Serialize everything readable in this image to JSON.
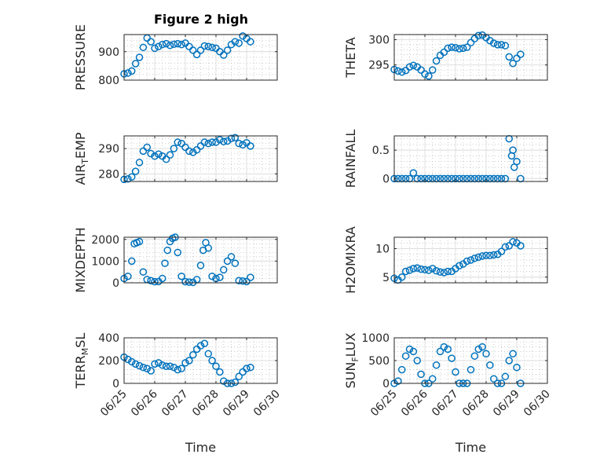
{
  "figure_title": "Figure 2 high",
  "colors": {
    "marker": "#0072BD",
    "axis": "#262626",
    "grid": "#b8b8b8",
    "background": "#ffffff"
  },
  "x_tick_labels": [
    "06/25",
    "06/26",
    "06/27",
    "06/28",
    "06/29",
    "06/30"
  ],
  "x_label": "Time",
  "chart_data": [
    {
      "type": "scatter",
      "title": "Figure 2 high",
      "ylabel": "PRESSURE",
      "xlabel": "",
      "ylim": [
        800,
        960
      ],
      "yticks": [
        800,
        900
      ],
      "grid": true,
      "legend": "none",
      "x": [
        "06/25 00:00",
        "06/25 03:00",
        "06/25 06:00",
        "06/25 09:00",
        "06/25 12:00",
        "06/25 15:00",
        "06/25 18:00",
        "06/25 21:00",
        "06/26 00:00",
        "06/26 03:00",
        "06/26 06:00",
        "06/26 09:00",
        "06/26 12:00",
        "06/26 15:00",
        "06/26 18:00",
        "06/26 21:00",
        "06/27 00:00",
        "06/27 03:00",
        "06/27 06:00",
        "06/27 09:00",
        "06/27 12:00",
        "06/27 15:00",
        "06/27 18:00",
        "06/27 21:00",
        "06/28 00:00",
        "06/28 03:00",
        "06/28 06:00",
        "06/28 09:00",
        "06/28 12:00",
        "06/28 15:00",
        "06/28 18:00",
        "06/28 21:00",
        "06/29 00:00",
        "06/29 03:00"
      ],
      "values": [
        822,
        825,
        832,
        858,
        880,
        915,
        948,
        935,
        912,
        918,
        925,
        928,
        922,
        926,
        928,
        925,
        930,
        918,
        905,
        890,
        905,
        920,
        918,
        915,
        912,
        900,
        888,
        905,
        925,
        935,
        930,
        955,
        946,
        935
      ]
    },
    {
      "type": "scatter",
      "ylabel": "THETA",
      "xlabel": "",
      "ylim": [
        292,
        301
      ],
      "yticks": [
        295,
        300
      ],
      "grid": true,
      "legend": "none",
      "x": [
        "06/25 00:00",
        "06/25 03:00",
        "06/25 06:00",
        "06/25 09:00",
        "06/25 12:00",
        "06/25 15:00",
        "06/25 18:00",
        "06/25 21:00",
        "06/26 00:00",
        "06/26 03:00",
        "06/26 06:00",
        "06/26 09:00",
        "06/26 12:00",
        "06/26 15:00",
        "06/26 18:00",
        "06/26 21:00",
        "06/27 00:00",
        "06/27 03:00",
        "06/27 06:00",
        "06/27 09:00",
        "06/27 12:00",
        "06/27 15:00",
        "06/27 18:00",
        "06/27 21:00",
        "06/28 00:00",
        "06/28 03:00",
        "06/28 06:00",
        "06/28 09:00",
        "06/28 12:00",
        "06/28 15:00",
        "06/28 18:00",
        "06/28 21:00",
        "06/29 00:00",
        "06/29 03:00"
      ],
      "values": [
        294.1,
        293.8,
        293.6,
        293.9,
        294.6,
        294.9,
        294.6,
        294.0,
        293.2,
        292.8,
        294.0,
        295.8,
        296.9,
        297.5,
        298.3,
        298.5,
        298.4,
        298.2,
        298.3,
        298.5,
        299.4,
        300.2,
        300.8,
        300.9,
        300.4,
        299.8,
        299.3,
        299.0,
        299.0,
        298.8,
        296.6,
        295.3,
        296.3,
        297.1
      ]
    },
    {
      "type": "scatter",
      "ylabel": "AIR_TEMP",
      "xlabel": "",
      "ylim": [
        277,
        295
      ],
      "yticks": [
        280,
        290
      ],
      "grid": true,
      "legend": "none",
      "x": [
        "06/25 00:00",
        "06/25 03:00",
        "06/25 06:00",
        "06/25 09:00",
        "06/25 12:00",
        "06/25 15:00",
        "06/25 18:00",
        "06/25 21:00",
        "06/26 00:00",
        "06/26 03:00",
        "06/26 06:00",
        "06/26 09:00",
        "06/26 12:00",
        "06/26 15:00",
        "06/26 18:00",
        "06/26 21:00",
        "06/27 00:00",
        "06/27 03:00",
        "06/27 06:00",
        "06/27 09:00",
        "06/27 12:00",
        "06/27 15:00",
        "06/27 18:00",
        "06/27 21:00",
        "06/28 00:00",
        "06/28 03:00",
        "06/28 06:00",
        "06/28 09:00",
        "06/28 12:00",
        "06/28 15:00",
        "06/28 18:00",
        "06/28 21:00",
        "06/29 00:00",
        "06/29 03:00"
      ],
      "values": [
        277.8,
        278.0,
        278.8,
        281.0,
        284.5,
        289.0,
        290.5,
        288.0,
        287.0,
        287.8,
        287.0,
        285.8,
        287.5,
        290.0,
        292.5,
        292.0,
        290.5,
        289.0,
        288.5,
        289.5,
        291.0,
        292.5,
        292.0,
        292.5,
        292.5,
        293.5,
        292.8,
        293.0,
        294.0,
        294.3,
        292.0,
        291.5,
        292.3,
        291.0
      ]
    },
    {
      "type": "scatter",
      "ylabel": "RAINFALL",
      "xlabel": "",
      "ylim": [
        -0.05,
        0.75
      ],
      "yticks": [
        0,
        0.5
      ],
      "grid": true,
      "legend": "none",
      "x": [
        "06/25 00:00",
        "06/25 03:00",
        "06/25 06:00",
        "06/25 09:00",
        "06/25 12:00",
        "06/25 15:00",
        "06/25 18:00",
        "06/25 21:00",
        "06/26 00:00",
        "06/26 03:00",
        "06/26 06:00",
        "06/26 09:00",
        "06/26 12:00",
        "06/26 15:00",
        "06/26 18:00",
        "06/26 21:00",
        "06/27 00:00",
        "06/27 03:00",
        "06/27 06:00",
        "06/27 09:00",
        "06/27 12:00",
        "06/27 15:00",
        "06/27 18:00",
        "06/27 21:00",
        "06/28 00:00",
        "06/28 03:00",
        "06/28 06:00",
        "06/28 09:00",
        "06/28 12:00",
        "06/28 15:00",
        "06/28 18:00",
        "06/28 20:00",
        "06/28 21:00",
        "06/28 22:00",
        "06/29 00:00",
        "06/29 03:00"
      ],
      "values": [
        0,
        0,
        0,
        0,
        0,
        0.1,
        0,
        0,
        0,
        0,
        0,
        0,
        0,
        0,
        0,
        0,
        0,
        0,
        0,
        0,
        0,
        0,
        0,
        0,
        0,
        0,
        0,
        0,
        0,
        0,
        0.7,
        0.4,
        0.5,
        0.2,
        0.3,
        0
      ]
    },
    {
      "type": "scatter",
      "ylabel": "MIXDEPTH",
      "xlabel": "",
      "ylim": [
        0,
        2100
      ],
      "yticks": [
        0,
        1000,
        2000
      ],
      "grid": true,
      "legend": "none",
      "x": [
        "06/25 00:00",
        "06/25 03:00",
        "06/25 06:00",
        "06/25 08:00",
        "06/25 10:00",
        "06/25 12:00",
        "06/25 15:00",
        "06/25 18:00",
        "06/25 21:00",
        "06/26 00:00",
        "06/26 03:00",
        "06/26 06:00",
        "06/26 08:00",
        "06/26 10:00",
        "06/26 12:00",
        "06/26 14:00",
        "06/26 16:00",
        "06/26 18:00",
        "06/26 21:00",
        "06/27 00:00",
        "06/27 03:00",
        "06/27 06:00",
        "06/27 09:00",
        "06/27 12:00",
        "06/27 14:00",
        "06/27 16:00",
        "06/27 18:00",
        "06/27 21:00",
        "06/28 00:00",
        "06/28 03:00",
        "06/28 06:00",
        "06/28 09:00",
        "06/28 12:00",
        "06/28 15:00",
        "06/28 18:00",
        "06/28 21:00",
        "06/29 00:00",
        "06/29 03:00"
      ],
      "values": [
        200,
        300,
        1000,
        1800,
        1850,
        1900,
        500,
        150,
        100,
        50,
        60,
        200,
        900,
        1500,
        1900,
        2050,
        2100,
        1400,
        300,
        50,
        30,
        20,
        150,
        800,
        1500,
        1850,
        1600,
        300,
        200,
        250,
        600,
        1000,
        1200,
        900,
        100,
        80,
        60,
        250
      ]
    },
    {
      "type": "scatter",
      "ylabel": "H2OMIXRA",
      "xlabel": "",
      "ylim": [
        4,
        12
      ],
      "yticks": [
        5,
        10
      ],
      "grid": true,
      "legend": "none",
      "x": [
        "06/25 00:00",
        "06/25 03:00",
        "06/25 06:00",
        "06/25 09:00",
        "06/25 12:00",
        "06/25 15:00",
        "06/25 18:00",
        "06/25 21:00",
        "06/26 00:00",
        "06/26 03:00",
        "06/26 06:00",
        "06/26 09:00",
        "06/26 12:00",
        "06/26 15:00",
        "06/26 18:00",
        "06/26 21:00",
        "06/27 00:00",
        "06/27 03:00",
        "06/27 06:00",
        "06/27 09:00",
        "06/27 12:00",
        "06/27 15:00",
        "06/27 18:00",
        "06/27 21:00",
        "06/28 00:00",
        "06/28 03:00",
        "06/28 06:00",
        "06/28 09:00",
        "06/28 12:00",
        "06/28 15:00",
        "06/28 18:00",
        "06/28 21:00",
        "06/29 00:00",
        "06/29 03:00"
      ],
      "values": [
        4.8,
        4.5,
        5.0,
        6.0,
        6.2,
        6.5,
        6.6,
        6.4,
        6.3,
        6.2,
        6.5,
        6.1,
        5.9,
        5.8,
        6.0,
        6.0,
        6.5,
        7.0,
        7.3,
        7.8,
        8.0,
        8.3,
        8.5,
        8.7,
        8.8,
        8.8,
        8.9,
        9.0,
        9.5,
        10.3,
        10.5,
        11.2,
        11.0,
        10.5
      ]
    },
    {
      "type": "scatter",
      "ylabel": "TERR_MSL",
      "xlabel": "",
      "ylim": [
        0,
        400
      ],
      "yticks": [
        0,
        200,
        400
      ],
      "grid": true,
      "legend": "none",
      "x": [
        "06/25 00:00",
        "06/25 03:00",
        "06/25 06:00",
        "06/25 09:00",
        "06/25 12:00",
        "06/25 15:00",
        "06/25 18:00",
        "06/25 21:00",
        "06/26 00:00",
        "06/26 03:00",
        "06/26 06:00",
        "06/26 09:00",
        "06/26 12:00",
        "06/26 15:00",
        "06/26 18:00",
        "06/26 21:00",
        "06/27 00:00",
        "06/27 03:00",
        "06/27 06:00",
        "06/27 09:00",
        "06/27 12:00",
        "06/27 15:00",
        "06/27 18:00",
        "06/27 21:00",
        "06/28 00:00",
        "06/28 03:00",
        "06/28 06:00",
        "06/28 09:00",
        "06/28 12:00",
        "06/28 15:00",
        "06/28 18:00",
        "06/28 21:00",
        "06/29 00:00",
        "06/29 03:00"
      ],
      "values": [
        230,
        210,
        190,
        170,
        155,
        140,
        130,
        110,
        170,
        180,
        160,
        150,
        150,
        140,
        120,
        130,
        180,
        200,
        250,
        300,
        330,
        350,
        260,
        200,
        150,
        100,
        20,
        0,
        0,
        10,
        60,
        100,
        130,
        140
      ]
    },
    {
      "type": "scatter",
      "ylabel": "SUN_FLUX",
      "xlabel": "",
      "ylim": [
        0,
        1000
      ],
      "yticks": [
        0,
        500,
        1000
      ],
      "grid": true,
      "legend": "none",
      "x": [
        "06/25 00:00",
        "06/25 03:00",
        "06/25 06:00",
        "06/25 09:00",
        "06/25 12:00",
        "06/25 15:00",
        "06/25 18:00",
        "06/25 21:00",
        "06/26 00:00",
        "06/26 03:00",
        "06/26 06:00",
        "06/26 09:00",
        "06/26 12:00",
        "06/26 15:00",
        "06/26 18:00",
        "06/26 21:00",
        "06/27 00:00",
        "06/27 03:00",
        "06/27 06:00",
        "06/27 09:00",
        "06/27 12:00",
        "06/27 15:00",
        "06/27 18:00",
        "06/27 21:00",
        "06/28 00:00",
        "06/28 03:00",
        "06/28 06:00",
        "06/28 09:00",
        "06/28 12:00",
        "06/28 15:00",
        "06/28 18:00",
        "06/28 21:00",
        "06/29 00:00",
        "06/29 03:00"
      ],
      "values": [
        0,
        50,
        300,
        600,
        750,
        700,
        500,
        200,
        0,
        0,
        100,
        400,
        700,
        800,
        750,
        550,
        250,
        0,
        0,
        0,
        300,
        600,
        750,
        800,
        650,
        400,
        100,
        0,
        0,
        150,
        500,
        650,
        350,
        0
      ]
    }
  ]
}
